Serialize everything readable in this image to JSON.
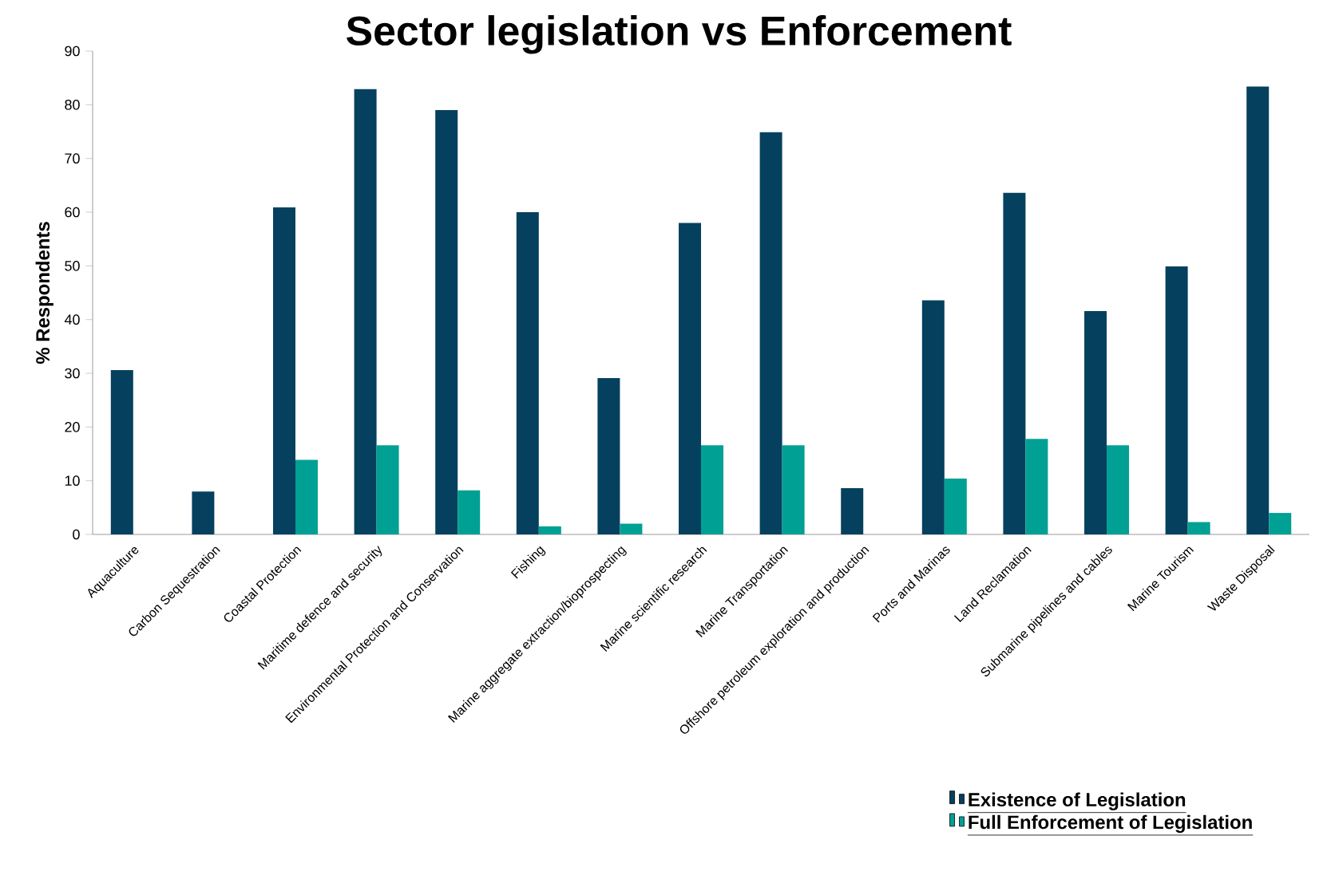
{
  "chart_data": {
    "type": "bar",
    "title": "Sector legislation vs Enforcement",
    "ylabel": "% Respondents",
    "categories": [
      "Aquaculture",
      "Carbon Sequestration",
      "Coastal Protection",
      "Maritime defence and security",
      "Environmental Protection and Conservation",
      "Fishing",
      "Marine aggregate extraction/bioprospecting",
      "Marine scientific research",
      "Marine Transportation",
      "Offshore petroleum exploration and production",
      "Ports and Marinas",
      "Land Reclamation",
      "Submarine pipelines and cables",
      "Marine Tourism",
      "Waste Disposal"
    ],
    "series": [
      {
        "name": "Existence of Legislation",
        "color": "#05415e",
        "values": [
          30.6,
          8,
          60.9,
          82.9,
          79,
          60,
          29.1,
          58,
          74.9,
          8.6,
          43.6,
          63.6,
          41.6,
          49.9,
          83.4
        ]
      },
      {
        "name": "Full Enforcement of Legislation",
        "color": "#01a094",
        "values": [
          0,
          0,
          13.9,
          16.6,
          8.2,
          1.5,
          2,
          16.6,
          16.6,
          0,
          10.4,
          17.8,
          16.6,
          2.3,
          4
        ]
      }
    ],
    "ylim": [
      0,
      90
    ],
    "yticks": [
      0,
      10,
      20,
      30,
      40,
      50,
      60,
      70,
      80,
      90
    ],
    "grid": false,
    "legend": "bottom right"
  }
}
